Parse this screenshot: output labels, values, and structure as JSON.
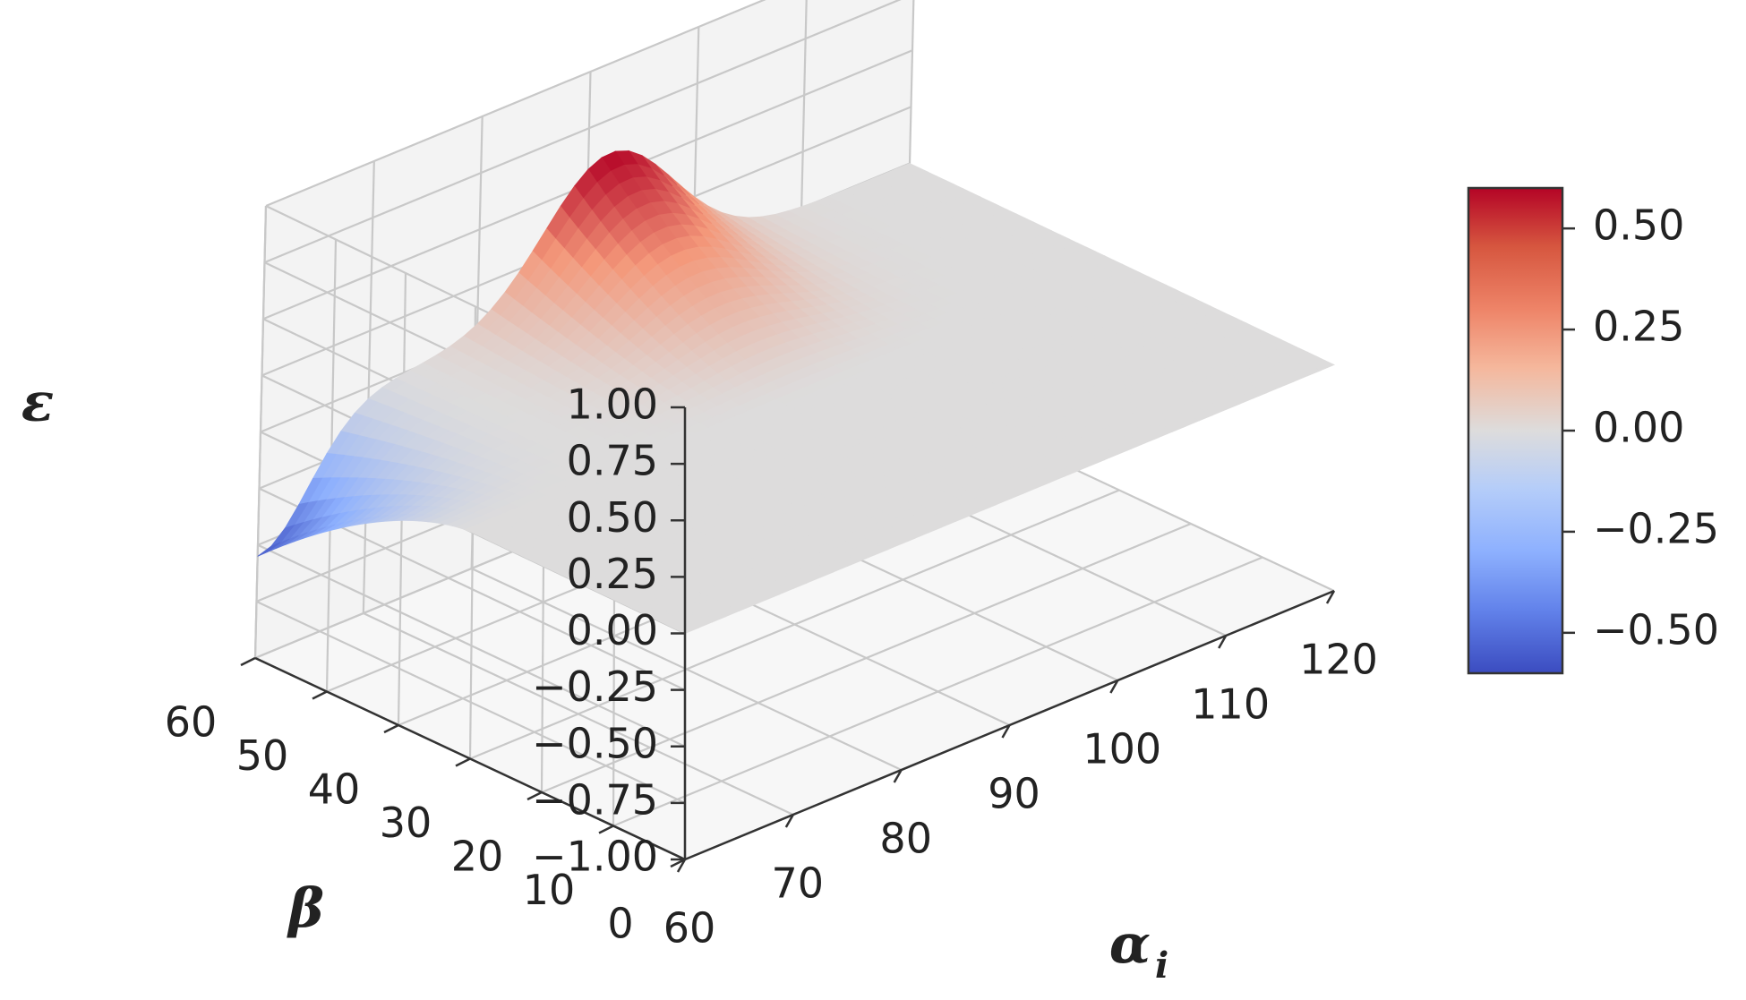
{
  "chart_data": {
    "type": "surface3d",
    "title": "",
    "xlabel": "α",
    "xlabel_sub": "i",
    "ylabel": "β",
    "zlabel": "ε",
    "x_ticks": [
      "60",
      "70",
      "80",
      "90",
      "100",
      "110",
      "120"
    ],
    "y_ticks": [
      "0",
      "10",
      "20",
      "30",
      "40",
      "50",
      "60"
    ],
    "z_ticks": [
      "−1.00",
      "−0.75",
      "−0.50",
      "−0.25",
      "0.00",
      "0.25",
      "0.50",
      "0.75",
      "1.00"
    ],
    "xlim": [
      60,
      120
    ],
    "ylim": [
      0,
      60
    ],
    "zlim": [
      -1,
      1
    ],
    "grid": true,
    "colormap": "coolwarm",
    "surface_features": [
      {
        "kind": "peak",
        "alpha": 92,
        "beta": 60,
        "epsilon": 0.6
      },
      {
        "kind": "trough",
        "alpha": 60,
        "beta": 55,
        "epsilon": -0.55
      },
      {
        "kind": "plateau",
        "alpha_range": [
          60,
          120
        ],
        "beta_range": [
          0,
          45
        ],
        "epsilon": 0.0
      }
    ],
    "colorbar": {
      "ticks": [
        "0.50",
        "0.25",
        "0.00",
        "−0.25",
        "−0.50"
      ],
      "tick_values": [
        0.5,
        0.25,
        0.0,
        -0.25,
        -0.5
      ],
      "range": [
        -0.6,
        0.6
      ]
    }
  },
  "colors": {
    "cool": "#3b4cc0",
    "neutral": "#dddddd",
    "warm": "#b40426",
    "pane_left": "#ededed",
    "pane_back": "#f3f3f3",
    "pane_floor": "#f7f7f7",
    "grid": "#c8c8c8"
  }
}
